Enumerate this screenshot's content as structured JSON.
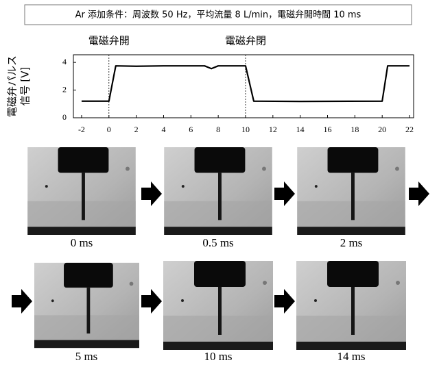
{
  "header": {
    "title": "Ar 添加条件：周波数 50 Hz，平均流量 8 L/min，電磁弁開時間 10 ms"
  },
  "chart_data": {
    "type": "line",
    "ylabel": [
      "電磁弁パルス",
      "信号 [V]"
    ],
    "x": [
      -2,
      0,
      0.5,
      2,
      4,
      6,
      7,
      7.5,
      8,
      10,
      10.6,
      14,
      20,
      20.4,
      22
    ],
    "values": [
      1.2,
      1.2,
      3.75,
      3.72,
      3.75,
      3.75,
      3.75,
      3.55,
      3.75,
      3.75,
      1.2,
      1.18,
      1.2,
      3.75,
      3.75
    ],
    "color": "#000000",
    "xlim": [
      -2.6,
      22.3
    ],
    "xticks": [
      -2,
      0,
      2,
      4,
      6,
      8,
      10,
      12,
      14,
      16,
      18,
      20,
      22
    ],
    "ylim": [
      0,
      4.55
    ],
    "yticks": [
      0,
      2,
      4
    ],
    "annotations": [
      {
        "text": "電磁弁開",
        "x": 0
      },
      {
        "text": "電磁弁閉",
        "x": 10
      }
    ]
  },
  "frames": [
    {
      "caption": "0 ms"
    },
    {
      "caption": "0.5 ms"
    },
    {
      "caption": "2 ms"
    },
    {
      "caption": "5 ms"
    },
    {
      "caption": "10 ms"
    },
    {
      "caption": "14 ms"
    }
  ]
}
